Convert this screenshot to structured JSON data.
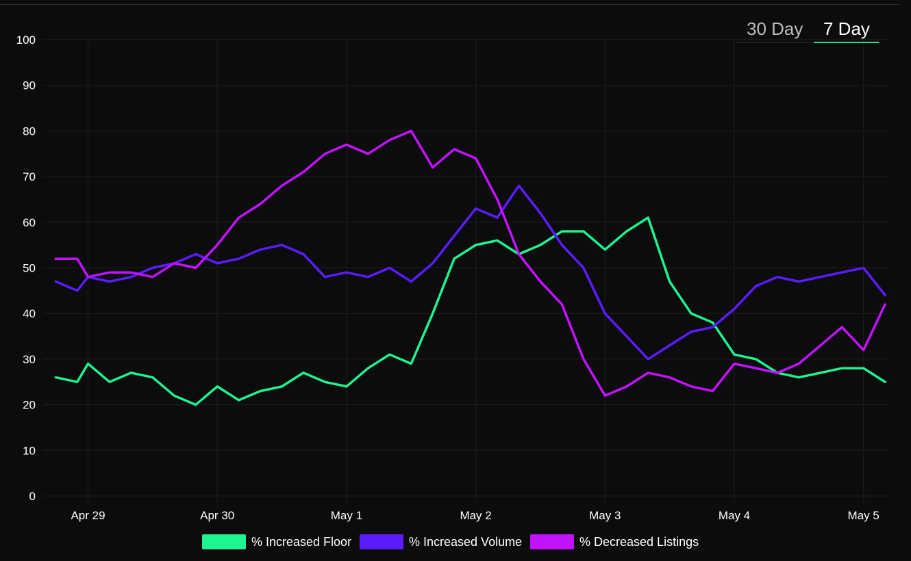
{
  "tabs": [
    {
      "label": "30 Day",
      "active": false
    },
    {
      "label": "7 Day",
      "active": true
    }
  ],
  "colors": {
    "floor": "#1ef48f",
    "volume": "#5b1cff",
    "listings": "#c312ff",
    "grid": "#1f1f1f",
    "background": "#0c0c0c"
  },
  "chart_data": {
    "type": "line",
    "title": "",
    "xlabel": "",
    "ylabel": "",
    "ylim": [
      0,
      100
    ],
    "y_ticks": [
      0,
      10,
      20,
      30,
      40,
      50,
      60,
      70,
      80,
      90,
      100
    ],
    "x_ticks": [
      "Apr 29",
      "Apr 30",
      "May 1",
      "May 2",
      "May 3",
      "May 4",
      "May 5"
    ],
    "x_range_days": [
      -0.31,
      6.2
    ],
    "grid": true,
    "legend_position": "bottom",
    "series": [
      {
        "name": "% Increased Floor",
        "color": "#1ef48f",
        "x": [
          "Apr 28 18:00",
          "Apr 28 22:00",
          "Apr 29 00:00",
          "Apr 29 04:00",
          "Apr 29 08:00",
          "Apr 29 12:00",
          "Apr 29 16:00",
          "Apr 29 20:00",
          "Apr 30 00:00",
          "Apr 30 04:00",
          "Apr 30 08:00",
          "Apr 30 12:00",
          "Apr 30 16:00",
          "Apr 30 20:00",
          "May 1 00:00",
          "May 1 04:00",
          "May 1 08:00",
          "May 1 12:00",
          "May 1 16:00",
          "May 1 20:00",
          "May 2 00:00",
          "May 2 04:00",
          "May 2 08:00",
          "May 2 12:00",
          "May 2 16:00",
          "May 2 20:00",
          "May 3 00:00",
          "May 3 04:00",
          "May 3 08:00",
          "May 3 12:00",
          "May 3 16:00",
          "May 3 20:00",
          "May 4 00:00",
          "May 4 04:00",
          "May 4 08:00",
          "May 4 12:00",
          "May 4 16:00",
          "May 4 20:00",
          "May 5 00:00",
          "May 5 04:00"
        ],
        "values": [
          26,
          25,
          29,
          25,
          27,
          26,
          22,
          20,
          24,
          21,
          23,
          24,
          27,
          25,
          24,
          28,
          31,
          29,
          40,
          52,
          55,
          56,
          53,
          55,
          58,
          58,
          54,
          58,
          61,
          47,
          40,
          38,
          31,
          30,
          27,
          26,
          27,
          28,
          28,
          25
        ]
      },
      {
        "name": "% Increased Volume",
        "color": "#5b1cff",
        "x": [
          "Apr 28 18:00",
          "Apr 28 22:00",
          "Apr 29 00:00",
          "Apr 29 04:00",
          "Apr 29 08:00",
          "Apr 29 12:00",
          "Apr 29 16:00",
          "Apr 29 20:00",
          "Apr 30 00:00",
          "Apr 30 04:00",
          "Apr 30 08:00",
          "Apr 30 12:00",
          "Apr 30 16:00",
          "Apr 30 20:00",
          "May 1 00:00",
          "May 1 04:00",
          "May 1 08:00",
          "May 1 12:00",
          "May 1 16:00",
          "May 1 20:00",
          "May 2 00:00",
          "May 2 04:00",
          "May 2 08:00",
          "May 2 12:00",
          "May 2 16:00",
          "May 2 20:00",
          "May 3 00:00",
          "May 3 04:00",
          "May 3 08:00",
          "May 3 12:00",
          "May 3 16:00",
          "May 3 20:00",
          "May 4 00:00",
          "May 4 04:00",
          "May 4 08:00",
          "May 4 12:00",
          "May 4 16:00",
          "May 4 20:00",
          "May 5 00:00",
          "May 5 04:00"
        ],
        "values": [
          47,
          45,
          48,
          47,
          48,
          50,
          51,
          53,
          51,
          52,
          54,
          55,
          53,
          48,
          49,
          48,
          50,
          47,
          51,
          57,
          63,
          61,
          68,
          62,
          55,
          50,
          40,
          35,
          30,
          33,
          36,
          37,
          41,
          46,
          48,
          47,
          48,
          49,
          50,
          44
        ]
      },
      {
        "name": "% Decreased Listings",
        "color": "#c312ff",
        "x": [
          "Apr 28 18:00",
          "Apr 28 22:00",
          "Apr 29 00:00",
          "Apr 29 04:00",
          "Apr 29 08:00",
          "Apr 29 12:00",
          "Apr 29 16:00",
          "Apr 29 20:00",
          "Apr 30 00:00",
          "Apr 30 04:00",
          "Apr 30 08:00",
          "Apr 30 12:00",
          "Apr 30 16:00",
          "Apr 30 20:00",
          "May 1 00:00",
          "May 1 04:00",
          "May 1 08:00",
          "May 1 12:00",
          "May 1 16:00",
          "May 1 20:00",
          "May 2 00:00",
          "May 2 04:00",
          "May 2 08:00",
          "May 2 12:00",
          "May 2 16:00",
          "May 2 20:00",
          "May 3 00:00",
          "May 3 04:00",
          "May 3 08:00",
          "May 3 12:00",
          "May 3 16:00",
          "May 3 20:00",
          "May 4 00:00",
          "May 4 04:00",
          "May 4 08:00",
          "May 4 12:00",
          "May 4 16:00",
          "May 4 20:00",
          "May 5 00:00",
          "May 5 04:00"
        ],
        "values": [
          52,
          52,
          48,
          49,
          49,
          48,
          51,
          50,
          55,
          61,
          64,
          68,
          71,
          75,
          77,
          75,
          78,
          80,
          72,
          76,
          74,
          65,
          53,
          47,
          42,
          30,
          22,
          24,
          27,
          26,
          24,
          23,
          29,
          28,
          27,
          29,
          33,
          37,
          32,
          42
        ]
      }
    ]
  }
}
